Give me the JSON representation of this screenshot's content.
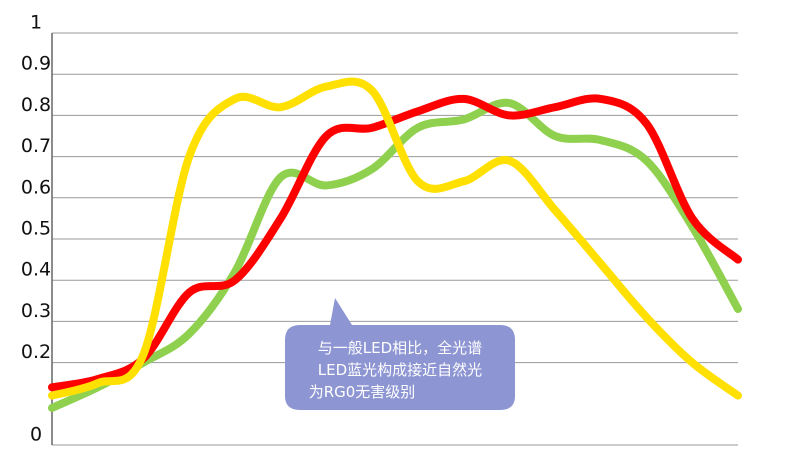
{
  "chart_data": {
    "type": "line",
    "categories": [
      null,
      null,
      null,
      null,
      null,
      null,
      null,
      null,
      null,
      null,
      null,
      null,
      null,
      null,
      null,
      null
    ],
    "series": [
      {
        "color": "#8fd14f",
        "values": [
          0.09,
          0.14,
          0.2,
          0.27,
          0.42,
          0.65,
          0.63,
          0.67,
          0.77,
          0.79,
          0.83,
          0.75,
          0.74,
          0.69,
          0.53,
          0.33
        ]
      },
      {
        "color": "#ff0000",
        "values": [
          0.14,
          0.16,
          0.21,
          0.37,
          0.4,
          0.55,
          0.75,
          0.77,
          0.81,
          0.84,
          0.8,
          0.82,
          0.84,
          0.78,
          0.55,
          0.45
        ]
      },
      {
        "color": "#ffe000",
        "values": [
          0.12,
          0.15,
          0.22,
          0.7,
          0.84,
          0.82,
          0.87,
          0.86,
          0.64,
          0.64,
          0.69,
          0.57,
          0.44,
          0.31,
          0.2,
          0.12
        ]
      }
    ],
    "ylim": [
      0,
      1
    ],
    "yticks": [
      0,
      0.2,
      0.3,
      0.4,
      0.5,
      0.6,
      0.7,
      0.8,
      0.9,
      1
    ],
    "grid": true,
    "annotation": [
      "与一般LED相比，全光谱",
      "LED蓝光构成接近自然光",
      "为RG0无害级别"
    ]
  }
}
